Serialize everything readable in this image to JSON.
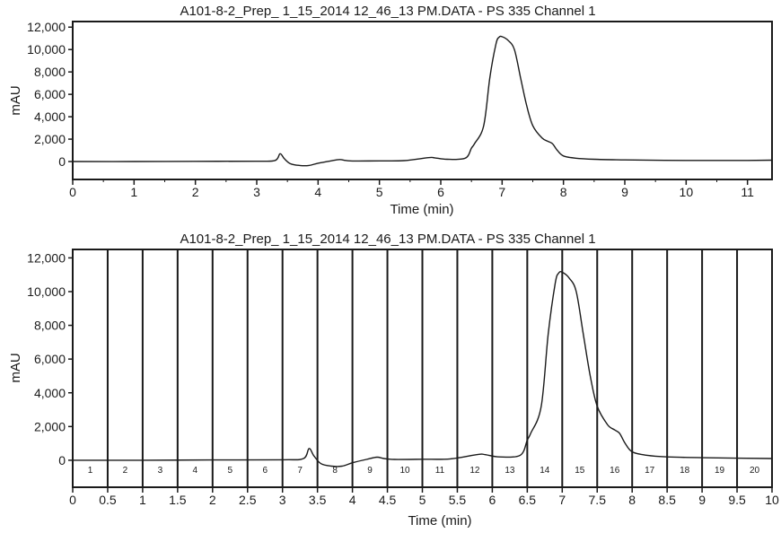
{
  "chart_data": [
    {
      "type": "line",
      "title": "A101-8-2_Prep_ 1_15_2014 12_46_13 PM.DATA - PS 335 Channel 1",
      "xlabel": "Time (min)",
      "ylabel": "mAU",
      "xlim": [
        0,
        11.4
      ],
      "ylim": [
        -1600,
        12500
      ],
      "xticks": [
        0,
        1,
        2,
        3,
        4,
        5,
        6,
        7,
        8,
        9,
        10,
        11
      ],
      "xtick_labels": [
        "0",
        "1",
        "2",
        "3",
        "4",
        "5",
        "6",
        "7",
        "8",
        "9",
        "10",
        "11"
      ],
      "yticks": [
        0,
        2000,
        4000,
        6000,
        8000,
        10000,
        12000
      ],
      "ytick_labels": [
        "0",
        "2,000",
        "4,000",
        "6,000",
        "8,000",
        "10,000",
        "12,000"
      ],
      "grid": false,
      "series": [
        {
          "x": [
            0,
            1,
            2,
            3,
            3.3,
            3.38,
            3.45,
            3.55,
            3.7,
            3.85,
            4.0,
            4.2,
            4.35,
            4.45,
            4.6,
            5.0,
            5.4,
            5.8,
            5.9,
            6.1,
            6.4,
            6.5,
            6.55,
            6.7,
            6.8,
            6.9,
            6.95,
            7.0,
            7.1,
            7.2,
            7.3,
            7.4,
            7.5,
            7.65,
            7.75,
            7.82,
            7.9,
            8.0,
            8.2,
            8.5,
            9,
            10,
            11,
            11.4
          ],
          "values": [
            0,
            0,
            20,
            30,
            100,
            700,
            250,
            -200,
            -350,
            -350,
            -150,
            50,
            180,
            100,
            50,
            60,
            80,
            350,
            330,
            200,
            300,
            1200,
            1600,
            3200,
            7500,
            10500,
            11100,
            11150,
            10800,
            10000,
            7500,
            5000,
            3200,
            2100,
            1800,
            1600,
            1000,
            500,
            300,
            200,
            150,
            100,
            100,
            120
          ]
        }
      ]
    },
    {
      "type": "line",
      "title": "A101-8-2_Prep_ 1_15_2014 12_46_13 PM.DATA - PS 335 Channel 1",
      "xlabel": "Time (min)",
      "ylabel": "mAU",
      "xlim": [
        0,
        10
      ],
      "ylim": [
        -1600,
        12500
      ],
      "xticks": [
        0,
        0.5,
        1,
        1.5,
        2,
        2.5,
        3,
        3.5,
        4,
        4.5,
        5,
        5.5,
        6,
        6.5,
        7,
        7.5,
        8,
        8.5,
        9,
        9.5,
        10
      ],
      "xtick_labels": [
        "0",
        "0.5",
        "1",
        "1.5",
        "2",
        "2.5",
        "3",
        "3.5",
        "4",
        "4.5",
        "5",
        "5.5",
        "6",
        "6.5",
        "7",
        "7.5",
        "8",
        "8.5",
        "9",
        "9.5",
        "10"
      ],
      "yticks": [
        0,
        2000,
        4000,
        6000,
        8000,
        10000,
        12000
      ],
      "ytick_labels": [
        "0",
        "2,000",
        "4,000",
        "6,000",
        "8,000",
        "10,000",
        "12,000"
      ],
      "grid": false,
      "fraction_boundaries": [
        0.5,
        1,
        1.5,
        2,
        2.5,
        3,
        3.5,
        4,
        4.5,
        5,
        5.5,
        6,
        6.5,
        7,
        7.5,
        8,
        8.5,
        9,
        9.5
      ],
      "fraction_labels": [
        "1",
        "2",
        "3",
        "4",
        "5",
        "6",
        "7",
        "8",
        "9",
        "10",
        "11",
        "12",
        "13",
        "14",
        "15",
        "16",
        "17",
        "18",
        "19",
        "20"
      ],
      "series": [
        {
          "x": [
            0,
            1,
            2,
            3,
            3.3,
            3.38,
            3.45,
            3.55,
            3.7,
            3.85,
            4.0,
            4.2,
            4.35,
            4.45,
            4.6,
            5.0,
            5.4,
            5.8,
            5.9,
            6.1,
            6.4,
            6.5,
            6.55,
            6.7,
            6.8,
            6.9,
            6.95,
            7.0,
            7.1,
            7.2,
            7.3,
            7.4,
            7.5,
            7.65,
            7.75,
            7.82,
            7.9,
            8.0,
            8.2,
            8.5,
            9,
            10
          ],
          "values": [
            0,
            0,
            20,
            30,
            100,
            700,
            250,
            -200,
            -350,
            -350,
            -150,
            50,
            180,
            100,
            50,
            60,
            80,
            350,
            330,
            200,
            300,
            1200,
            1600,
            3200,
            7500,
            10500,
            11100,
            11150,
            10800,
            10000,
            7500,
            5000,
            3200,
            2100,
            1800,
            1600,
            1000,
            500,
            300,
            200,
            150,
            100
          ]
        }
      ]
    }
  ]
}
